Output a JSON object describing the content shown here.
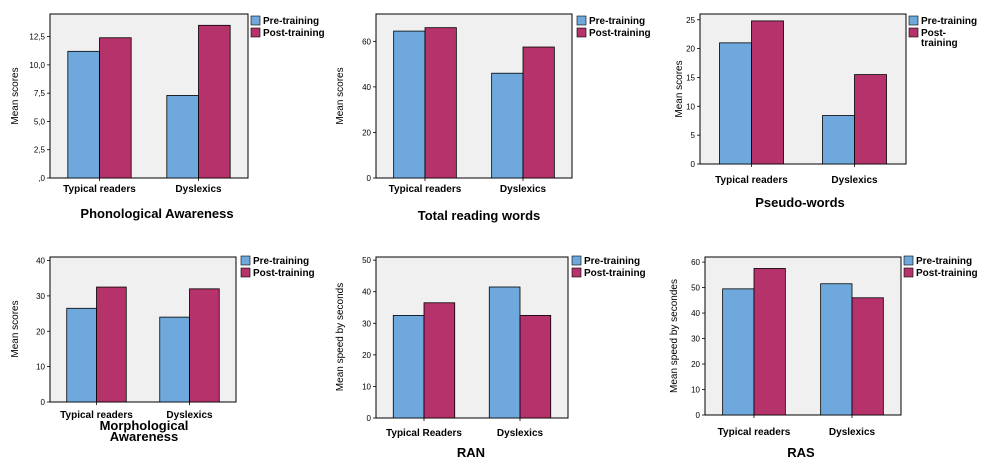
{
  "colors": {
    "pre": "#6fa8dc",
    "post": "#b5326a",
    "plot_bg": "#f0f0f0"
  },
  "chart_data": [
    {
      "type": "bar",
      "title": "Phonological Awareness",
      "title_lines": [
        "Phonological Awareness"
      ],
      "ylabel": "Mean scores",
      "categories": [
        "Typical readers",
        "Dyslexics"
      ],
      "ylim": [
        0,
        14.5
      ],
      "yticks": [
        0,
        2.5,
        5.0,
        7.5,
        10.0,
        12.5
      ],
      "ytick_labels": [
        ",0",
        "2,5",
        "5,0",
        "7,5",
        "10,0",
        "12,5"
      ],
      "legend_position": "top-right",
      "series": [
        {
          "name": "Pre-training",
          "values": [
            11.2,
            7.3
          ]
        },
        {
          "name": "Post-training",
          "values": [
            12.4,
            13.5
          ]
        }
      ]
    },
    {
      "type": "bar",
      "title": "Total reading words",
      "title_lines": [
        "Total reading words"
      ],
      "ylabel": "Mean scores",
      "categories": [
        "Typical readers",
        "Dyslexics"
      ],
      "ylim": [
        0,
        72
      ],
      "yticks": [
        0,
        20,
        40,
        60
      ],
      "ytick_labels": [
        "0",
        "20",
        "40",
        "60"
      ],
      "legend_position": "top-right",
      "series": [
        {
          "name": "Pre-training",
          "values": [
            64.5,
            46
          ]
        },
        {
          "name": "Post-training",
          "values": [
            66,
            57.5
          ]
        }
      ]
    },
    {
      "type": "bar",
      "title": "Pseudo-words",
      "title_lines": [
        "Pseudo-words"
      ],
      "ylabel": "Mean scores",
      "categories": [
        "Typical readers",
        "Dyslexics"
      ],
      "ylim": [
        0,
        26
      ],
      "yticks": [
        0,
        5,
        10,
        15,
        20,
        25
      ],
      "ytick_labels": [
        "0",
        "5",
        "10",
        "15",
        "20",
        "25"
      ],
      "legend_position": "top-right",
      "series": [
        {
          "name": "Pre-training",
          "name_lines": [
            "Pre-training"
          ],
          "values": [
            21,
            8.4
          ]
        },
        {
          "name": "Post-training",
          "name_lines": [
            "Post-",
            "training"
          ],
          "values": [
            24.8,
            15.5
          ]
        }
      ]
    },
    {
      "type": "bar",
      "title": "Morphological Awareness",
      "title_lines": [
        "Morphological",
        "Awareness"
      ],
      "ylabel": "Mean scores",
      "categories": [
        "Typical readers",
        "Dyslexics"
      ],
      "ylim": [
        0,
        41
      ],
      "yticks": [
        0,
        10,
        20,
        30,
        40
      ],
      "ytick_labels": [
        "0",
        "10",
        "20",
        "30",
        "40"
      ],
      "legend_position": "top-right",
      "series": [
        {
          "name": "Pre-training",
          "values": [
            26.5,
            24
          ]
        },
        {
          "name": "Post-training",
          "values": [
            32.5,
            32
          ]
        }
      ]
    },
    {
      "type": "bar",
      "title": "RAN",
      "title_lines": [
        "RAN"
      ],
      "ylabel": "Mean speed by seconds",
      "categories": [
        "Typical Readers",
        "Dyslexics"
      ],
      "ylim": [
        0,
        51
      ],
      "yticks": [
        0,
        10,
        20,
        30,
        40,
        50
      ],
      "ytick_labels": [
        "0",
        "10",
        "20",
        "30",
        "40",
        "50"
      ],
      "legend_position": "top-right",
      "series": [
        {
          "name": "Pre-training",
          "values": [
            32.5,
            41.5
          ]
        },
        {
          "name": "Post-training",
          "values": [
            36.5,
            32.5
          ]
        }
      ]
    },
    {
      "type": "bar",
      "title": "RAS",
      "title_lines": [
        "RAS"
      ],
      "ylabel": "Mean speed by secondes",
      "categories": [
        "Typical readers",
        "Dyslexics"
      ],
      "ylim": [
        0,
        62
      ],
      "yticks": [
        0,
        10,
        20,
        30,
        40,
        50,
        60
      ],
      "ytick_labels": [
        "0",
        "10",
        "20",
        "30",
        "40",
        "50",
        "60"
      ],
      "legend_position": "top-right",
      "series": [
        {
          "name": "Pre-training",
          "values": [
            49.5,
            51.5
          ]
        },
        {
          "name": "Post-training",
          "values": [
            57.5,
            46
          ]
        }
      ]
    }
  ]
}
